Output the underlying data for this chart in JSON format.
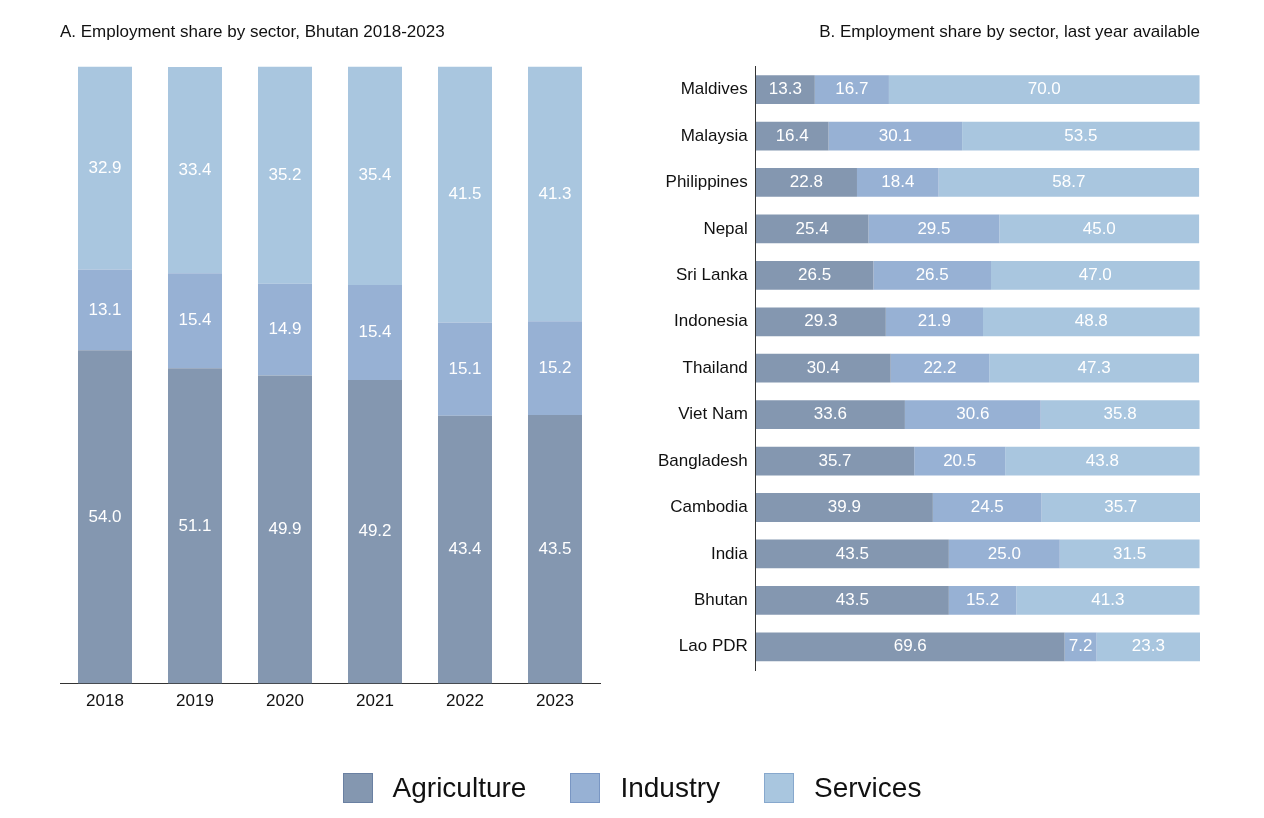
{
  "chart_data": [
    {
      "type": "bar",
      "title": "A. Employment share by sector, Bhutan 2018-2023",
      "stacked": true,
      "legend": "bottom",
      "grid": false,
      "categories": [
        "2018",
        "2019",
        "2020",
        "2021",
        "2022",
        "2023"
      ],
      "series": [
        {
          "name": "Agriculture",
          "color": "#8497b0",
          "values": [
            54.0,
            51.1,
            49.9,
            49.2,
            43.4,
            43.5
          ],
          "value_labels": [
            "54.0",
            "51.1",
            "49.9",
            "49.2",
            "43.4",
            "43.5"
          ]
        },
        {
          "name": "Industry",
          "color": "#97b1d4",
          "values": [
            13.1,
            15.4,
            14.9,
            15.4,
            15.1,
            15.2
          ],
          "value_labels": [
            "13.1",
            "15.4",
            "14.9",
            "15.4",
            "15.1",
            "15.2"
          ]
        },
        {
          "name": "Services",
          "color": "#a9c6df",
          "values": [
            32.9,
            33.4,
            35.2,
            35.4,
            41.5,
            41.3
          ],
          "value_labels": [
            "32.9",
            "33.4",
            "35.2",
            "35.4",
            "41.5",
            "41.3"
          ]
        }
      ]
    },
    {
      "type": "bar",
      "title": "B. Employment share by sector, last year available",
      "stacked": true,
      "orientation": "horizontal",
      "grid": false,
      "categories": [
        "Maldives",
        "Malaysia",
        "Philippines",
        "Nepal",
        "Sri Lanka",
        "Indonesia",
        "Thailand",
        "Viet Nam",
        "Bangladesh",
        "Cambodia",
        "India",
        "Bhutan",
        "Lao PDR"
      ],
      "series": [
        {
          "color": "#8497b0",
          "values": [
            13.3,
            16.4,
            22.8,
            25.4,
            26.5,
            29.3,
            30.4,
            33.6,
            35.7,
            39.9,
            43.5,
            43.5,
            69.6
          ],
          "value_labels": [
            "13.3",
            "16.4",
            "22.8",
            "25.4",
            "26.5",
            "29.3",
            "30.4",
            "33.6",
            "35.7",
            "39.9",
            "43.5",
            "43.5",
            "69.6"
          ]
        },
        {
          "color": "#97b1d4",
          "values": [
            16.7,
            30.1,
            18.4,
            29.5,
            26.5,
            21.9,
            22.2,
            30.6,
            20.5,
            24.5,
            25.0,
            15.2,
            7.2
          ],
          "value_labels": [
            "16.7",
            "30.1",
            "18.4",
            "29.5",
            "26.5",
            "21.9",
            "22.2",
            "30.6",
            "20.5",
            "24.5",
            "25.0",
            "15.2",
            "7.2"
          ]
        },
        {
          "color": "#a9c6df",
          "values": [
            70.0,
            53.5,
            58.7,
            45.0,
            47.0,
            48.8,
            47.3,
            35.8,
            43.8,
            35.7,
            31.5,
            41.3,
            23.3
          ],
          "value_labels": [
            "70.0",
            "53.5",
            "58.7",
            "45.0",
            "47.0",
            "48.8",
            "47.3",
            "35.8",
            "43.8",
            "35.7",
            "31.5",
            "41.3",
            "23.3"
          ]
        }
      ]
    }
  ]
}
